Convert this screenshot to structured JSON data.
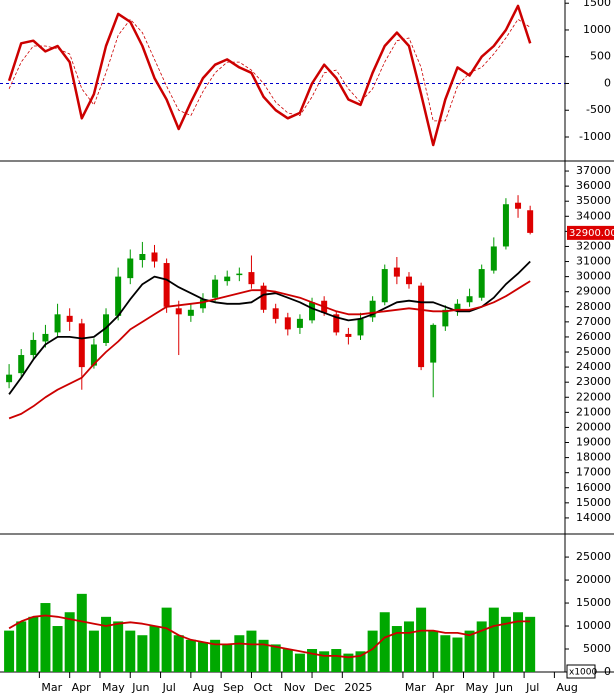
{
  "chart_data": [
    {
      "type": "line",
      "name": "oscillator",
      "x": [
        0,
        0.4,
        0.8,
        1.2,
        1.6,
        2.0,
        2.4,
        2.8,
        3.2,
        3.6,
        4.0,
        4.4,
        4.8,
        5.2,
        5.6,
        6.0,
        6.4,
        6.8,
        7.2,
        7.6,
        8.0,
        8.4,
        8.8,
        9.2,
        9.6,
        10.0,
        10.4,
        10.8,
        11.2,
        11.6,
        12.0,
        12.4,
        12.8,
        13.2,
        13.6,
        14.0,
        14.4,
        14.8,
        15.2,
        15.6,
        16.0,
        16.4,
        16.8,
        17.2
      ],
      "series": [
        {
          "color": "#cc0000",
          "width": 2.5,
          "dashed": false,
          "values": [
            50,
            750,
            800,
            600,
            700,
            400,
            -650,
            -200,
            700,
            1300,
            1150,
            700,
            100,
            -300,
            -850,
            -350,
            100,
            350,
            450,
            300,
            200,
            -250,
            -500,
            -650,
            -550,
            0,
            350,
            100,
            -300,
            -400,
            200,
            700,
            950,
            700,
            -200,
            -1150,
            -300,
            300,
            150,
            500,
            700,
            1000,
            1450,
            750
          ]
        },
        {
          "color": "#cc0000",
          "width": 0.8,
          "dashed": true,
          "values": [
            -100,
            400,
            700,
            700,
            650,
            550,
            -100,
            -400,
            200,
            900,
            1200,
            950,
            450,
            -50,
            -500,
            -600,
            -150,
            200,
            400,
            400,
            250,
            0,
            -350,
            -550,
            -600,
            -250,
            200,
            250,
            -100,
            -350,
            -100,
            400,
            800,
            850,
            300,
            -700,
            -700,
            -50,
            200,
            300,
            550,
            850,
            1200,
            1050
          ]
        }
      ],
      "zero_line_color": "#0000cc",
      "xlim": [
        -0.3,
        18.35
      ],
      "ylim": [
        -1430,
        1560
      ],
      "yticks": [
        -1000,
        -500,
        0,
        500,
        1000,
        1500
      ]
    },
    {
      "type": "candlestick",
      "name": "price",
      "x": [
        0,
        0.4,
        0.8,
        1.2,
        1.6,
        2.0,
        2.4,
        2.8,
        3.2,
        3.6,
        4.0,
        4.4,
        4.8,
        5.2,
        5.6,
        6.0,
        6.4,
        6.8,
        7.2,
        7.6,
        8.0,
        8.4,
        8.8,
        9.2,
        9.6,
        10.0,
        10.4,
        10.8,
        11.2,
        11.6,
        12.0,
        12.4,
        12.8,
        13.2,
        13.6,
        14.0,
        14.4,
        14.8,
        15.2,
        15.6,
        16.0,
        16.4,
        16.8,
        17.2
      ],
      "open": [
        23000,
        23600,
        24800,
        25700,
        26300,
        27400,
        26900,
        24100,
        25600,
        27400,
        29900,
        31100,
        31600,
        30900,
        27900,
        27400,
        27900,
        28600,
        29700,
        30100,
        30300,
        29400,
        27900,
        27300,
        26600,
        27100,
        28400,
        27500,
        26200,
        26100,
        27300,
        28300,
        30600,
        30000,
        29400,
        24300,
        26700,
        27700,
        28300,
        28600,
        30400,
        32000,
        34900,
        34400
      ],
      "high": [
        24200,
        25200,
        26300,
        26800,
        28200,
        27900,
        27200,
        25900,
        27900,
        30600,
        31800,
        32300,
        32100,
        31200,
        28400,
        28200,
        28900,
        30100,
        30400,
        30600,
        31400,
        29600,
        28200,
        27600,
        27500,
        28600,
        28700,
        27700,
        26600,
        27600,
        28700,
        30800,
        31300,
        30300,
        29600,
        26900,
        28100,
        28500,
        29200,
        30800,
        32600,
        35200,
        35400,
        34700
      ],
      "low": [
        22600,
        23300,
        24500,
        25300,
        26000,
        26400,
        22500,
        23900,
        25400,
        27100,
        29500,
        30600,
        30600,
        27600,
        24800,
        27000,
        27600,
        28300,
        29400,
        29700,
        29200,
        27600,
        26900,
        26100,
        26200,
        26900,
        27400,
        26100,
        25500,
        25800,
        27000,
        28100,
        29500,
        29200,
        23800,
        22000,
        26400,
        27400,
        28000,
        28400,
        30200,
        31800,
        33900,
        32800
      ],
      "close": [
        23500,
        24800,
        25800,
        26200,
        27500,
        27000,
        24000,
        25500,
        27500,
        30000,
        31200,
        31500,
        31000,
        28000,
        27500,
        27800,
        28500,
        29800,
        30000,
        30200,
        29500,
        27800,
        27200,
        26500,
        27200,
        28300,
        27600,
        26300,
        26000,
        27200,
        28400,
        30500,
        30000,
        29500,
        24000,
        26800,
        27800,
        28200,
        28700,
        30500,
        32000,
        34800,
        34500,
        32900
      ],
      "up_color": "#009900",
      "down_color": "#dd0000",
      "series": [
        {
          "color": "#000000",
          "values": [
            22200,
            23300,
            24500,
            25500,
            26000,
            26000,
            25900,
            26000,
            26600,
            27400,
            28500,
            29500,
            30000,
            29800,
            29300,
            28900,
            28500,
            28300,
            28200,
            28200,
            28300,
            28800,
            28900,
            28600,
            28300,
            27900,
            27600,
            27300,
            27100,
            27200,
            27500,
            27900,
            28300,
            28400,
            28300,
            28300,
            28000,
            27700,
            27700,
            28000,
            28600,
            29500,
            30200,
            31000
          ]
        },
        {
          "color": "#cc0000",
          "values": [
            20600,
            20900,
            21400,
            22000,
            22500,
            22900,
            23300,
            24200,
            25000,
            25700,
            26500,
            27000,
            27500,
            28000,
            28100,
            28200,
            28300,
            28500,
            28700,
            28900,
            29100,
            29100,
            29000,
            28800,
            28600,
            28300,
            28000,
            27700,
            27500,
            27500,
            27600,
            27700,
            27800,
            27900,
            27800,
            27700,
            27700,
            27800,
            27800,
            28000,
            28300,
            28700,
            29200,
            29700
          ]
        }
      ],
      "price_label": "32900.00",
      "price_label_color": "#dd0000",
      "xlim": [
        -0.3,
        18.35
      ],
      "ylim": [
        13000,
        37600
      ],
      "yticks": [
        14000,
        15000,
        16000,
        17000,
        18000,
        19000,
        20000,
        21000,
        22000,
        23000,
        24000,
        25000,
        26000,
        27000,
        28000,
        29000,
        30000,
        31000,
        32000,
        33000,
        34000,
        35000,
        36000,
        37000
      ]
    },
    {
      "type": "bar",
      "name": "volume",
      "x": [
        0,
        0.4,
        0.8,
        1.2,
        1.6,
        2.0,
        2.4,
        2.8,
        3.2,
        3.6,
        4.0,
        4.4,
        4.8,
        5.2,
        5.6,
        6.0,
        6.4,
        6.8,
        7.2,
        7.6,
        8.0,
        8.4,
        8.8,
        9.2,
        9.6,
        10.0,
        10.4,
        10.8,
        11.2,
        11.6,
        12.0,
        12.4,
        12.8,
        13.2,
        13.6,
        14.0,
        14.4,
        14.8,
        15.2,
        15.6,
        16.0,
        16.4,
        16.8,
        17.2
      ],
      "values": [
        9000,
        11000,
        12000,
        15000,
        10000,
        13000,
        17000,
        9000,
        12000,
        11000,
        9000,
        8000,
        10000,
        14000,
        8000,
        7000,
        6500,
        7000,
        6000,
        8000,
        9000,
        7000,
        6000,
        5000,
        4000,
        5000,
        4500,
        5000,
        4000,
        4500,
        9000,
        13000,
        10000,
        11000,
        14000,
        9000,
        8000,
        7500,
        9000,
        11000,
        14000,
        12000,
        13000,
        12000
      ],
      "color": "#00a800",
      "series": [
        {
          "color": "#cc0000",
          "values": [
            9500,
            11000,
            12000,
            12300,
            12000,
            11500,
            11000,
            10500,
            10000,
            10500,
            10800,
            10500,
            10000,
            9500,
            8000,
            7000,
            6500,
            6000,
            6000,
            6200,
            6000,
            6000,
            5500,
            5000,
            4500,
            4000,
            3500,
            3500,
            3200,
            3500,
            5000,
            7500,
            8500,
            8500,
            9000,
            9000,
            8500,
            8500,
            8000,
            9000,
            10000,
            10500,
            11000,
            11000
          ]
        }
      ],
      "unit_label": "x1000",
      "xlim": [
        -0.3,
        18.35
      ],
      "ylim": [
        0,
        29800
      ],
      "yticks": [
        0,
        5000,
        10000,
        15000,
        20000,
        25000
      ],
      "xticks": [
        {
          "value": 1,
          "label": "Mar"
        },
        {
          "value": 2,
          "label": "Apr"
        },
        {
          "value": 3,
          "label": "May"
        },
        {
          "value": 4,
          "label": "Jun"
        },
        {
          "value": 5,
          "label": "Jul"
        },
        {
          "value": 6,
          "label": "Aug"
        },
        {
          "value": 7,
          "label": "Sep"
        },
        {
          "value": 8,
          "label": "Oct"
        },
        {
          "value": 9,
          "label": "Nov"
        },
        {
          "value": 10,
          "label": "Dec"
        },
        {
          "value": 11,
          "label": "2025"
        },
        {
          "value": 13,
          "label": "Mar"
        },
        {
          "value": 14,
          "label": "Apr"
        },
        {
          "value": 15,
          "label": "May"
        },
        {
          "value": 16,
          "label": "Jun"
        },
        {
          "value": 17,
          "label": "Jul"
        },
        {
          "value": 18,
          "label": "Aug"
        }
      ]
    }
  ]
}
